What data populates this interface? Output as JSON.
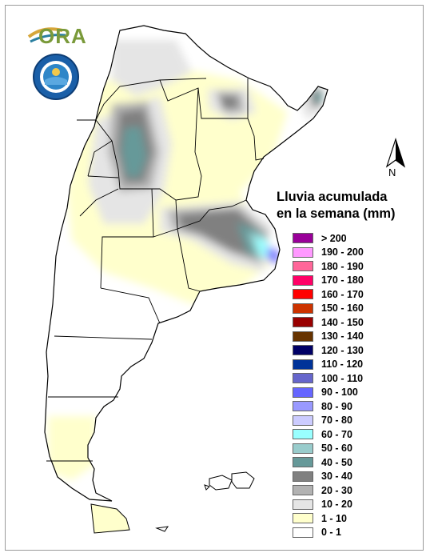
{
  "logos": {
    "ora_text": "ORA",
    "smn_emblem": "smn-emblem-icon"
  },
  "north_arrow": {
    "label": "N",
    "icon": "north-arrow-icon"
  },
  "legend": {
    "title_line1": "Lluvia acumulada",
    "title_line2": "en la semana (mm)",
    "classes": [
      {
        "label": "> 200",
        "color": "#990099"
      },
      {
        "label": "190 - 200",
        "color": "#ff99ff"
      },
      {
        "label": "180 - 190",
        "color": "#ff6699"
      },
      {
        "label": "170 - 180",
        "color": "#ff0066"
      },
      {
        "label": "160 - 170",
        "color": "#ff0000"
      },
      {
        "label": "150 - 160",
        "color": "#cc3300"
      },
      {
        "label": "140 - 150",
        "color": "#990000"
      },
      {
        "label": "130 - 140",
        "color": "#663300"
      },
      {
        "label": "120 - 130",
        "color": "#000066"
      },
      {
        "label": "110 - 120",
        "color": "#003399"
      },
      {
        "label": "100 - 110",
        "color": "#6666cc"
      },
      {
        "label": "90 - 100",
        "color": "#6666ff"
      },
      {
        "label": "80 - 90",
        "color": "#9999ff"
      },
      {
        "label": "70 - 80",
        "color": "#ccccff"
      },
      {
        "label": "60 - 70",
        "color": "#99ffff"
      },
      {
        "label": "50 - 60",
        "color": "#99cccc"
      },
      {
        "label": "40 - 50",
        "color": "#669999"
      },
      {
        "label": "30 - 40",
        "color": "#808080"
      },
      {
        "label": "20 - 30",
        "color": "#b2b2b2"
      },
      {
        "label": "10 - 20",
        "color": "#e5e5e5"
      },
      {
        "label": "1 - 10",
        "color": "#ffffcc"
      },
      {
        "label": "0 - 1",
        "color": "#ffffff"
      }
    ]
  }
}
